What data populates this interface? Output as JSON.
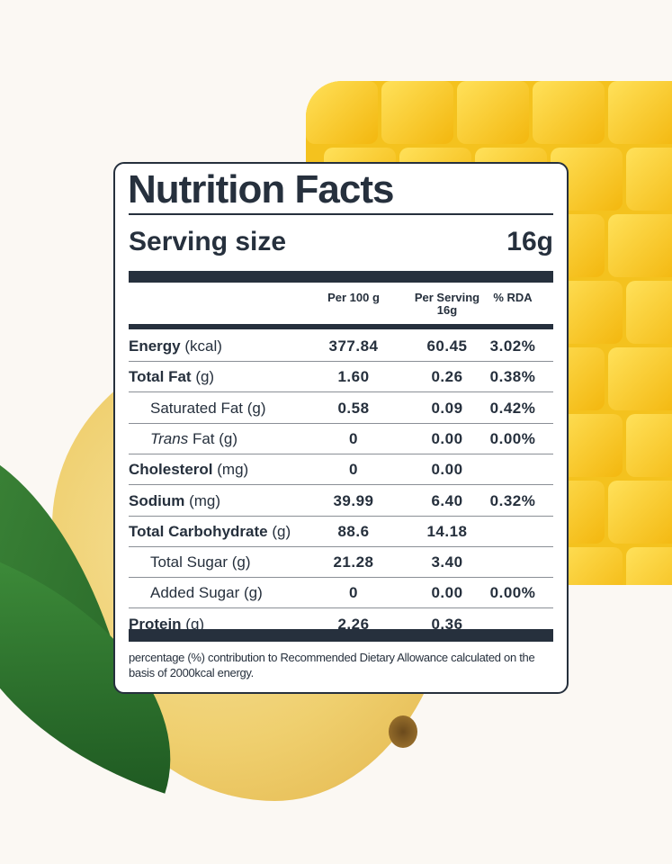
{
  "label": {
    "title": "Nutrition Facts",
    "serving_size_label": "Serving size",
    "serving_size_value": "16g",
    "columns": [
      "Per 100 g",
      "Per Serving\n16g",
      "% RDA"
    ],
    "column_headers": {
      "per100": "Per 100 g",
      "per_serving": "Per Serving",
      "per_serving_sub": "16g",
      "rda": "% RDA"
    },
    "rows": [
      {
        "name": "Energy",
        "unit": "(kcal)",
        "bold": true,
        "per100": "377.84",
        "per_serving": "60.45",
        "rda": "3.02%"
      },
      {
        "name": "Total Fat",
        "unit": "(g)",
        "bold": true,
        "per100": "1.60",
        "per_serving": "0.26",
        "rda": "0.38%"
      },
      {
        "name": "Saturated Fat",
        "unit": "(g)",
        "bold": false,
        "per100": "0.58",
        "per_serving": "0.09",
        "rda": "0.42%"
      },
      {
        "name": "Trans",
        "unit": "Fat (g)",
        "bold": false,
        "per100": "0",
        "per_serving": "0.00",
        "rda": "0.00%"
      },
      {
        "name": "Cholesterol",
        "unit": "(mg)",
        "bold": true,
        "per100": "0",
        "per_serving": "0.00",
        "rda": ""
      },
      {
        "name": "Sodium",
        "unit": "(mg)",
        "bold": true,
        "per100": "39.99",
        "per_serving": "6.40",
        "rda": "0.32%"
      },
      {
        "name": "Total Carbohydrate",
        "unit": "(g)",
        "bold": true,
        "per100": "88.6",
        "per_serving": "14.18",
        "rda": ""
      },
      {
        "name": "Total Sugar",
        "unit": "(g)",
        "bold": false,
        "per100": "21.28",
        "per_serving": "3.40",
        "rda": ""
      },
      {
        "name": "Added Sugar",
        "unit": "(g)",
        "bold": false,
        "per100": "0",
        "per_serving": "0.00",
        "rda": "0.00%"
      },
      {
        "name": "Protein",
        "unit": "(g)",
        "bold": true,
        "per100": "2.26",
        "per_serving": "0.36",
        "rda": ""
      }
    ],
    "footnote": "percentage (%) contribution to Recommended Dietary Allowance calculated on the basis of 2000kcal energy."
  },
  "colors": {
    "ink": "#26303d",
    "mango": "#f4c21e",
    "leaf": "#2f7a2f"
  }
}
